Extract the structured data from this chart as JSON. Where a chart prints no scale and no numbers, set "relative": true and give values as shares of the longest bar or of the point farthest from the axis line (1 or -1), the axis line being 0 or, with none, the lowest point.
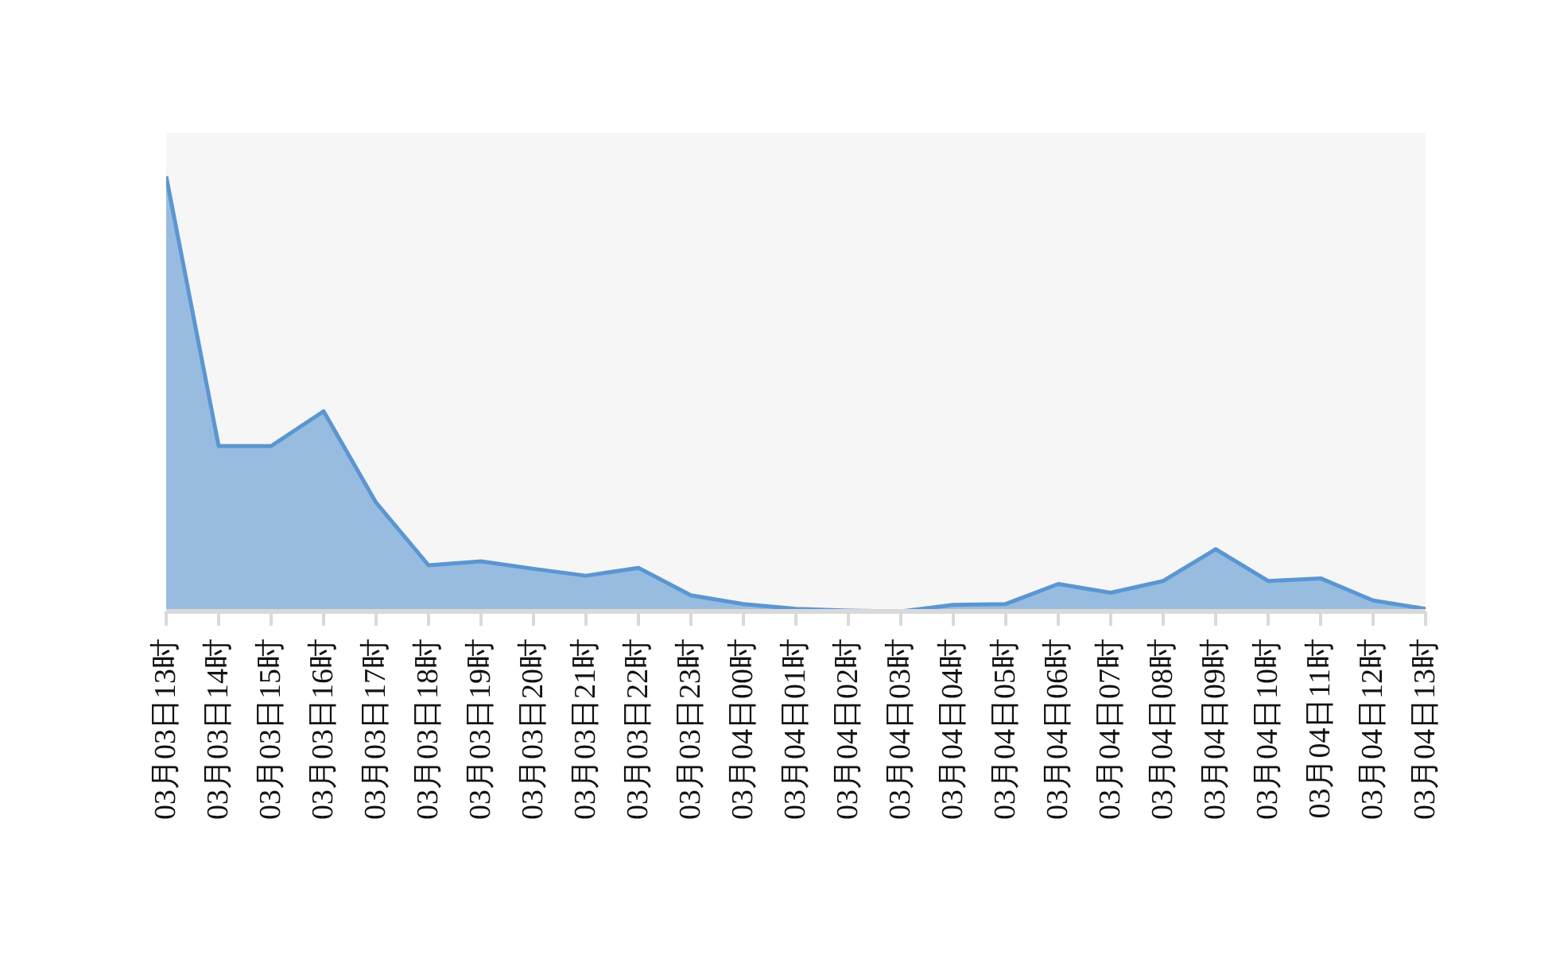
{
  "chart_data": {
    "type": "area",
    "relative": true,
    "categories": [
      "03月03日13时",
      "03月03日14时",
      "03月03日15时",
      "03月03日16时",
      "03月03日17时",
      "03月03日18时",
      "03月03日19时",
      "03月03日20时",
      "03月03日21时",
      "03月03日22时",
      "03月03日23时",
      "03月04日00时",
      "03月04日01时",
      "03月04日02时",
      "03月04日03时",
      "03月04日04时",
      "03月04日05时",
      "03月04日06时",
      "03月04日07时",
      "03月04日08时",
      "03月04日09时",
      "03月04日10时",
      "03月04日11时",
      "03月04日12时",
      "03月04日13时"
    ],
    "values": [
      1,
      0.38,
      0.38,
      0.46,
      0.25,
      0.106,
      0.115,
      0.098,
      0.082,
      0.1,
      0.037,
      0.017,
      0.006,
      0.002,
      0,
      0.015,
      0.017,
      0.063,
      0.043,
      0.07,
      0.143,
      0.07,
      0.076,
      0.025,
      0.006
    ],
    "color": "#5a96d2"
  }
}
